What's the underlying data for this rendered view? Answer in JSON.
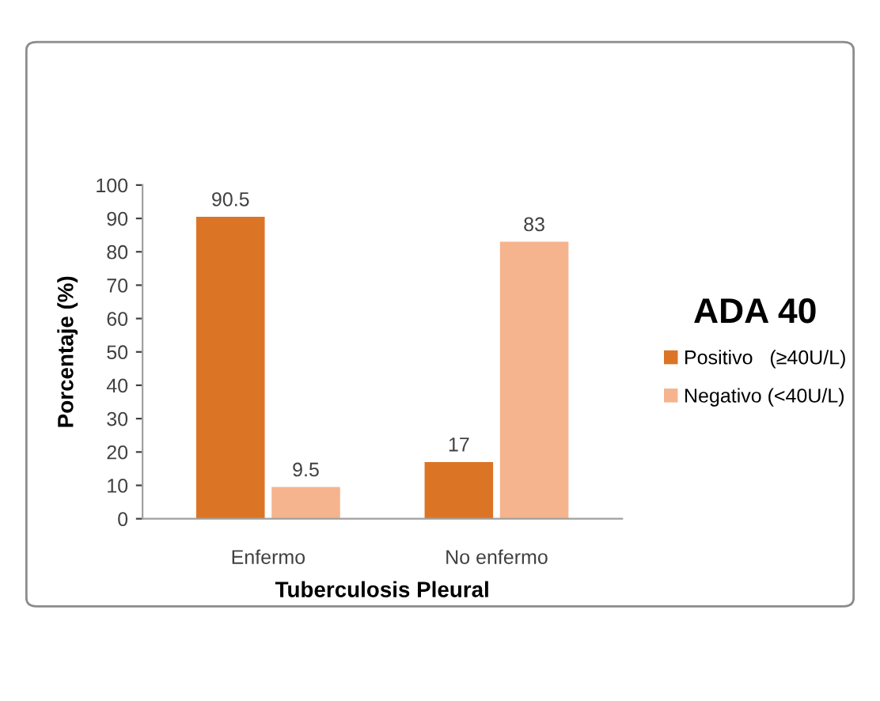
{
  "chart_data": {
    "type": "bar",
    "xlabel": "Tuberculosis Pleural",
    "ylabel": "Porcentaje (%)",
    "legend_title": "ADA 40",
    "categories": [
      "Enfermo",
      "No enfermo"
    ],
    "series": [
      {
        "name": "Positivo   (≥40U/L)",
        "color": "#dc7426",
        "values": [
          90.5,
          17
        ]
      },
      {
        "name": "Negativo (<40U/L)",
        "color": "#f5b48e",
        "values": [
          9.5,
          83
        ]
      }
    ],
    "ylim": [
      0,
      100
    ],
    "yticks": [
      0,
      10,
      20,
      30,
      40,
      50,
      60,
      70,
      80,
      90,
      100
    ],
    "grid": false,
    "legend": "right",
    "data_labels": true
  }
}
